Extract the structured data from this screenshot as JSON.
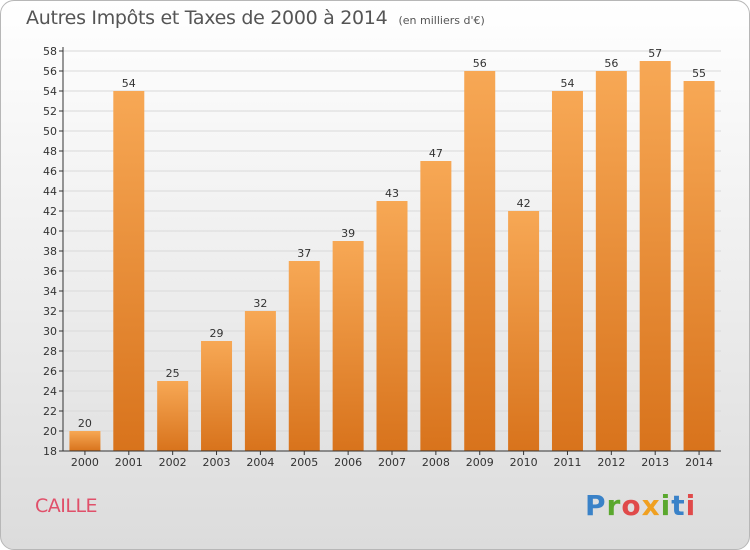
{
  "title": "Autres Impôts et Taxes de 2000 à 2014",
  "unit": "(en milliers d'€)",
  "city": "CAILLE",
  "logo": {
    "text": "Proxiti",
    "colors": [
      "#3a82c8",
      "#5aa82e",
      "#f0a020",
      "#e04a4a"
    ]
  },
  "colors": {
    "bar_top": "#f7a855",
    "bar_bottom": "#d8731c",
    "grid": "#d9d9d9",
    "axis": "#333333"
  },
  "chart_data": {
    "type": "bar",
    "title": "Autres Impôts et Taxes de 2000 à 2014",
    "xlabel": "",
    "ylabel": "",
    "categories": [
      "2000",
      "2001",
      "2002",
      "2003",
      "2004",
      "2005",
      "2006",
      "2007",
      "2008",
      "2009",
      "2010",
      "2011",
      "2012",
      "2013",
      "2014"
    ],
    "values": [
      20,
      54,
      25,
      29,
      32,
      37,
      39,
      43,
      47,
      56,
      42,
      54,
      56,
      57,
      55
    ],
    "ylim": [
      18,
      58
    ],
    "yticks": [
      18,
      20,
      22,
      24,
      26,
      28,
      30,
      32,
      34,
      36,
      38,
      40,
      42,
      44,
      46,
      48,
      50,
      52,
      54,
      56,
      58
    ],
    "grid": true,
    "data_labels": true
  }
}
